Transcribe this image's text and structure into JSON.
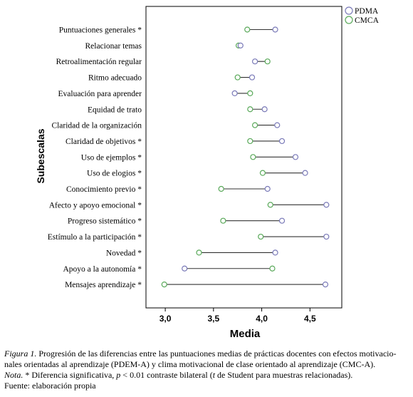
{
  "chart_data": {
    "type": "dumbbell",
    "orientation": "horizontal",
    "xlabel": "Media",
    "ylabel": "Subescalas",
    "xlim": [
      2.8,
      4.83
    ],
    "xticks": [
      "3,0",
      "3,5",
      "4,0",
      "4,5"
    ],
    "xtick_values": [
      3.0,
      3.5,
      4.0,
      4.5
    ],
    "grid": false,
    "legend_position": "top-right",
    "series": [
      {
        "name": "PDMA",
        "color": "#7a7ab8"
      },
      {
        "name": "CMCA",
        "color": "#5aa95a"
      }
    ],
    "categories": [
      {
        "label": "Puntuaciones generales",
        "sig": "*",
        "pdma": 4.14,
        "cmca": 3.85
      },
      {
        "label": "Relacionar temas",
        "sig": "",
        "pdma": 3.78,
        "cmca": 3.76
      },
      {
        "label": "Retroalimentación regular",
        "sig": "",
        "pdma": 3.93,
        "cmca": 4.06
      },
      {
        "label": "Ritmo adecuado",
        "sig": "",
        "pdma": 3.9,
        "cmca": 3.75
      },
      {
        "label": "Evaluación para aprender",
        "sig": "",
        "pdma": 3.72,
        "cmca": 3.88
      },
      {
        "label": "Equidad de trato",
        "sig": "",
        "pdma": 4.03,
        "cmca": 3.88
      },
      {
        "label": "Claridad de la organización",
        "sig": "",
        "pdma": 4.16,
        "cmca": 3.93
      },
      {
        "label": "Claridad de objetivos",
        "sig": "*",
        "pdma": 4.21,
        "cmca": 3.88
      },
      {
        "label": "Uso de ejemplos",
        "sig": "*",
        "pdma": 4.35,
        "cmca": 3.91
      },
      {
        "label": "Uso de elogios",
        "sig": "*",
        "pdma": 4.45,
        "cmca": 4.01
      },
      {
        "label": "Conocimiento previo",
        "sig": "*",
        "pdma": 4.06,
        "cmca": 3.58
      },
      {
        "label": "Afecto y apoyo emocional",
        "sig": "*",
        "pdma": 4.67,
        "cmca": 4.09
      },
      {
        "label": "Progreso sistemático",
        "sig": "*",
        "pdma": 4.21,
        "cmca": 3.6
      },
      {
        "label": "Estímulo a la participación",
        "sig": "*",
        "pdma": 4.67,
        "cmca": 3.99
      },
      {
        "label": "Novedad",
        "sig": "*",
        "pdma": 4.14,
        "cmca": 3.35
      },
      {
        "label": "Apoyo a la autonomía",
        "sig": "*",
        "pdma": 3.2,
        "cmca": 4.11
      },
      {
        "label": "Mensajes aprendizaje",
        "sig": "*",
        "pdma": 4.66,
        "cmca": 2.99
      }
    ]
  },
  "caption": {
    "figure_label": "Figura 1.",
    "figure_text": "Progresión de las diferencias entre las puntuaciones medias de prácticas docentes con efectos motivacio-nales orientadas al aprendizaje (PDEM-A) y clima motivacional de clase orientado al aprendizaje (CMC-A).",
    "note_label": "Nota.",
    "note_text_1": "* Diferencia significativa,",
    "note_p": "p",
    "note_text_2": "< 0.01 contraste bilateral (",
    "note_t": "t",
    "note_text_3": "de Student para muestras relacionadas).",
    "source": "Fuente: elaboración propia"
  }
}
